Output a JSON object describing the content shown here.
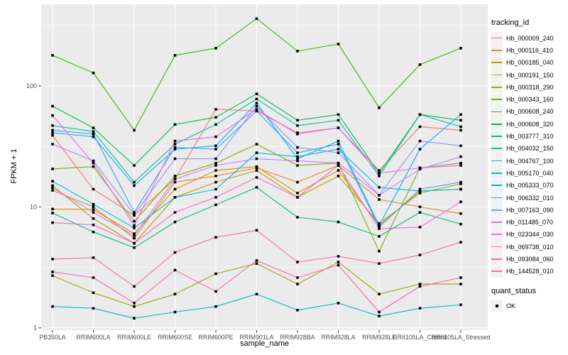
{
  "chart_data": {
    "type": "line",
    "title": "",
    "xlabel": "sample_name",
    "ylabel": "FPKM + 1",
    "y_scale": "log10",
    "ylim": [
      1,
      450
    ],
    "y_ticks": [
      1,
      10,
      100
    ],
    "y_minor_gridlines": [
      3.1623,
      31.623,
      316.23
    ],
    "grid": true,
    "panel_bg": "#EBEBEB",
    "gridline_color": "#FFFFFF",
    "tick_label_color": "#4D4D4D",
    "marker": {
      "shape": "square",
      "color": "#000000",
      "size": 3.6
    },
    "legend_position": "right",
    "x_categories": [
      "PB350LA",
      "RRIM600LA",
      "RRIM600LE",
      "RRIM600SE",
      "RRIM600PE",
      "RRIM901LA",
      "RRIM928BA",
      "RRIM928LA",
      "RRIM928LE",
      "RRII105LA_Control",
      "RRII105LA_Stressed"
    ],
    "series": [
      {
        "name": "Hb_000009_240",
        "color": "#F8766D",
        "values": [
          39,
          14,
          8.5,
          17,
          64,
          62,
          41,
          45,
          20,
          46,
          43
        ]
      },
      {
        "name": "Hb_000116_410",
        "color": "#EA8331",
        "values": [
          13.7,
          10,
          5.5,
          16,
          18,
          21,
          16,
          22,
          11.5,
          10,
          8.8
        ]
      },
      {
        "name": "Hb_000185_040",
        "color": "#D89000",
        "values": [
          9.6,
          9.5,
          6,
          14,
          20,
          21.5,
          13,
          20,
          7,
          13.5,
          14
        ]
      },
      {
        "name": "Hb_000191_150",
        "color": "#C09B00",
        "values": [
          15,
          8,
          5,
          12,
          16,
          20,
          12,
          18,
          7.3,
          13,
          15.5
        ]
      },
      {
        "name": "Hb_000318_290",
        "color": "#A3A500",
        "values": [
          2.7,
          1.95,
          1.5,
          1.9,
          2.8,
          3.4,
          2.3,
          3.5,
          1.9,
          2.3,
          2.3
        ]
      },
      {
        "name": "Hb_000343_160",
        "color": "#7CAE00",
        "values": [
          20.6,
          21.5,
          7.6,
          18,
          23,
          33,
          22,
          23,
          4.3,
          21,
          23
        ]
      },
      {
        "name": "Hb_000608_240",
        "color": "#39B600",
        "values": [
          179,
          128,
          43,
          179,
          205,
          360,
          194,
          222,
          66,
          150,
          205
        ]
      },
      {
        "name": "Hb_000608_320",
        "color": "#00BB4E",
        "values": [
          68,
          45,
          22,
          48,
          55,
          86,
          52,
          58,
          19,
          58,
          52
        ]
      },
      {
        "name": "Hb_003777_310",
        "color": "#00BF7D",
        "values": [
          8.9,
          6.2,
          4.6,
          7.5,
          10.4,
          14.5,
          8.2,
          7.5,
          5.7,
          9,
          7.2
        ]
      },
      {
        "name": "Hb_004032_150",
        "color": "#00C1A3",
        "values": [
          47,
          42,
          16,
          33,
          48,
          78,
          47,
          52,
          18,
          58,
          46
        ]
      },
      {
        "name": "Hb_004767_100",
        "color": "#00BFC4",
        "values": [
          1.5,
          1.45,
          1.2,
          1.35,
          1.5,
          1.9,
          1.4,
          1.6,
          1.25,
          1.45,
          1.55
        ]
      },
      {
        "name": "Hb_005170_040",
        "color": "#00BAE0",
        "values": [
          16.3,
          10.5,
          6.7,
          12,
          14,
          28,
          26,
          30,
          14.5,
          13.5,
          14
        ]
      },
      {
        "name": "Hb_005333_070",
        "color": "#00B0F6",
        "values": [
          41,
          38,
          15,
          30,
          32,
          72,
          25,
          35,
          7,
          30,
          58
        ]
      },
      {
        "name": "Hb_006332_010",
        "color": "#35A2FF",
        "values": [
          43,
          40,
          9,
          31,
          30,
          62,
          28,
          33,
          6.8,
          14,
          16
        ]
      },
      {
        "name": "Hb_007163_090",
        "color": "#9590FF",
        "values": [
          33,
          24,
          8.6,
          25,
          25,
          68,
          31,
          28,
          12.5,
          35,
          32
        ]
      },
      {
        "name": "Hb_011485_070",
        "color": "#C77CFF",
        "values": [
          14.4,
          9,
          5.8,
          17,
          22,
          25,
          24,
          23,
          12.5,
          20.5,
          26
        ]
      },
      {
        "name": "Hb_023344_030",
        "color": "#E76BF3",
        "values": [
          57,
          23,
          7,
          35,
          38,
          64,
          40,
          45,
          19,
          21,
          22
        ]
      },
      {
        "name": "Hb_069738_010",
        "color": "#FA62DB",
        "values": [
          7.4,
          7.1,
          5,
          9,
          12,
          17.5,
          12,
          22,
          6.6,
          6.8,
          11
        ]
      },
      {
        "name": "Hb_093084_060",
        "color": "#FF62BC",
        "values": [
          2.9,
          2.6,
          1.6,
          3,
          2,
          3.6,
          2.6,
          3.3,
          1.35,
          2.2,
          2.6
        ]
      },
      {
        "name": "Hb_144528_010",
        "color": "#FF6A98",
        "values": [
          3.7,
          3.8,
          2.2,
          4.2,
          5.6,
          6.4,
          3.5,
          3.9,
          3.4,
          4,
          5.1
        ]
      }
    ],
    "legend": {
      "tracking_title": "tracking_id",
      "quant_title": "quant_status",
      "quant_items": [
        {
          "label": "OK",
          "color": "#000000"
        }
      ]
    }
  }
}
